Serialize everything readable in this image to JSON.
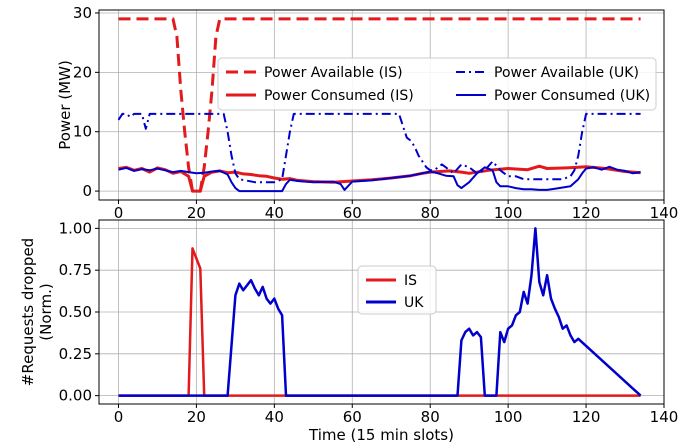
{
  "chart_data": [
    {
      "type": "line",
      "ylabel": "Power (MW)",
      "xlabel": "",
      "xlim": [
        -5,
        140
      ],
      "ylim": [
        -1.5,
        30.5
      ],
      "xticks": [
        0,
        20,
        40,
        60,
        80,
        100,
        120,
        140
      ],
      "yticks": [
        0,
        10,
        20,
        30
      ],
      "grid": true,
      "legend": {
        "placement": "upper-center",
        "columns": 2
      },
      "series": [
        {
          "name": "Power Available (IS)",
          "color": "#e31a1c",
          "style": "dashed",
          "x": [
            0,
            14,
            15,
            16,
            17,
            18,
            19,
            20,
            21,
            22,
            23,
            24,
            25,
            26,
            134
          ],
          "y": [
            29,
            29,
            26,
            17,
            10,
            4,
            0,
            0,
            0,
            4,
            10,
            17,
            26,
            29,
            29
          ]
        },
        {
          "name": "Power Consumed (IS)",
          "color": "#e31a1c",
          "style": "solid",
          "x": [
            0,
            2,
            4,
            6,
            8,
            10,
            12,
            14,
            16,
            18,
            19,
            20,
            21,
            22,
            24,
            26,
            28,
            30,
            32,
            34,
            36,
            38,
            40,
            42,
            44,
            46,
            50,
            55,
            60,
            65,
            70,
            75,
            78,
            80,
            85,
            88,
            90,
            95,
            100,
            105,
            108,
            110,
            115,
            118,
            120,
            125,
            130,
            134
          ],
          "y": [
            3.8,
            4.0,
            3.5,
            3.8,
            3.2,
            3.9,
            3.6,
            3.0,
            3.3,
            2.5,
            0,
            0,
            0,
            2.5,
            3.2,
            3.4,
            3.1,
            3.2,
            2.9,
            2.8,
            2.6,
            2.5,
            2.2,
            2.0,
            2.1,
            1.8,
            1.6,
            1.5,
            1.7,
            1.9,
            2.2,
            2.6,
            3.0,
            3.2,
            3.4,
            3.2,
            3.0,
            3.5,
            3.8,
            3.6,
            4.2,
            3.8,
            3.9,
            4.0,
            4.1,
            3.8,
            3.3,
            3.1
          ]
        },
        {
          "name": "Power Available (UK)",
          "color": "#0000cc",
          "style": "dashdot",
          "x": [
            0,
            1,
            2,
            3,
            4,
            5,
            6,
            7,
            8,
            9,
            10,
            12,
            15,
            20,
            25,
            27,
            28,
            29,
            30,
            31,
            35,
            40,
            42,
            43,
            44,
            45,
            46,
            50,
            60,
            70,
            72,
            73,
            74,
            75,
            76,
            77,
            78,
            79,
            80,
            81,
            82,
            83,
            84,
            86,
            88,
            90,
            92,
            94,
            96,
            98,
            100,
            102,
            104,
            106,
            108,
            110,
            112,
            114,
            116,
            117,
            118,
            119,
            120,
            125,
            130,
            134
          ],
          "y": [
            12,
            13,
            13,
            12.5,
            13,
            13,
            13,
            10.5,
            13,
            13,
            13,
            13,
            13,
            13,
            13,
            13,
            10,
            6,
            3,
            2,
            1.5,
            1.5,
            2,
            6,
            10,
            13,
            13,
            13,
            13,
            13,
            13,
            11,
            9,
            8.5,
            7.5,
            6,
            5,
            4,
            3.5,
            3.5,
            4,
            4.5,
            4,
            3,
            4.5,
            4,
            3,
            3.5,
            5,
            3.5,
            2.5,
            2.5,
            2.0,
            2.0,
            2.0,
            2.0,
            2.0,
            2.0,
            2.5,
            3.5,
            6,
            10,
            13,
            13,
            13,
            13
          ]
        },
        {
          "name": "Power Consumed (UK)",
          "color": "#0000cc",
          "style": "solid",
          "x": [
            0,
            2,
            4,
            6,
            8,
            10,
            12,
            14,
            16,
            18,
            20,
            22,
            24,
            26,
            28,
            29,
            30,
            31,
            35,
            40,
            42,
            43,
            44,
            46,
            50,
            55,
            57,
            58,
            60,
            65,
            70,
            75,
            78,
            80,
            82,
            84,
            86,
            87,
            88,
            90,
            92,
            94,
            96,
            97,
            98,
            100,
            102,
            104,
            106,
            108,
            110,
            112,
            114,
            116,
            118,
            119,
            120,
            122,
            124,
            126,
            128,
            130,
            132,
            134
          ],
          "y": [
            3.6,
            3.9,
            3.4,
            3.7,
            3.5,
            3.8,
            3.5,
            3.2,
            3.4,
            3.2,
            3.0,
            3.1,
            3.3,
            3.4,
            2.8,
            1.5,
            0.5,
            0,
            0,
            0,
            0,
            1.2,
            1.9,
            1.7,
            1.5,
            1.6,
            1.2,
            0.2,
            1.6,
            1.8,
            2.2,
            2.6,
            3.0,
            3.3,
            3.0,
            2.6,
            2.5,
            1.0,
            0.5,
            1.5,
            3.0,
            4.0,
            3.5,
            1.5,
            0.8,
            0.8,
            0.5,
            0.3,
            0.3,
            0.2,
            0.2,
            0.4,
            0.6,
            0.8,
            2.0,
            3.0,
            3.8,
            4.0,
            3.6,
            4.1,
            3.6,
            3.4,
            3.0,
            3.2
          ]
        }
      ]
    },
    {
      "type": "line",
      "ylabel": "#Requests dropped\n(Norm.)",
      "xlabel": "Time (15 min slots)",
      "xlim": [
        -5,
        140
      ],
      "ylim": [
        -0.05,
        1.05
      ],
      "xticks": [
        0,
        20,
        40,
        60,
        80,
        100,
        120,
        140
      ],
      "yticks": [
        0.0,
        0.25,
        0.5,
        0.75,
        1.0
      ],
      "grid": true,
      "legend": {
        "placement": "center",
        "columns": 1
      },
      "series": [
        {
          "name": "IS",
          "color": "#e31a1c",
          "style": "solid",
          "x": [
            0,
            18,
            19,
            20,
            21,
            22,
            134
          ],
          "y": [
            0,
            0,
            0.88,
            0.82,
            0.76,
            0,
            0
          ]
        },
        {
          "name": "UK",
          "color": "#0000cc",
          "style": "solid",
          "x": [
            0,
            28,
            29,
            30,
            31,
            32,
            33,
            34,
            35,
            36,
            37,
            38,
            39,
            40,
            41,
            42,
            43,
            87,
            88,
            89,
            90,
            91,
            92,
            93,
            94,
            97,
            98,
            99,
            100,
            101,
            102,
            103,
            104,
            105,
            106,
            107,
            108,
            109,
            110,
            111,
            112,
            113,
            114,
            115,
            116,
            117,
            118,
            134
          ],
          "y": [
            0,
            0,
            0.3,
            0.6,
            0.67,
            0.63,
            0.66,
            0.69,
            0.64,
            0.6,
            0.65,
            0.58,
            0.55,
            0.58,
            0.52,
            0.48,
            0,
            0,
            0.33,
            0.38,
            0.4,
            0.36,
            0.38,
            0.35,
            0,
            0,
            0.38,
            0.32,
            0.4,
            0.42,
            0.48,
            0.5,
            0.62,
            0.55,
            0.72,
            1.0,
            0.68,
            0.6,
            0.72,
            0.58,
            0.52,
            0.47,
            0.4,
            0.42,
            0.36,
            0.32,
            0.34,
            0
          ]
        }
      ]
    }
  ]
}
